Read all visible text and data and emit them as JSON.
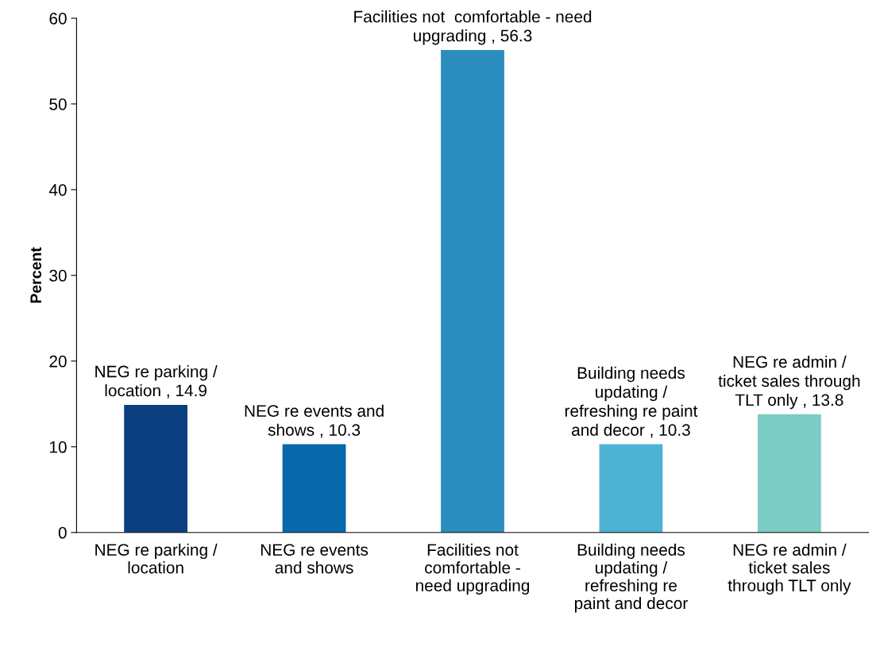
{
  "chart_data": {
    "type": "bar",
    "ylabel": "Percent",
    "categories": [
      "NEG re parking /\nlocation",
      "NEG re events\nand shows",
      "Facilities not\ncomfortable -\nneed upgrading",
      "Building needs\nupdating /\nrefreshing re\npaint and decor",
      "NEG re admin /\nticket sales\nthrough TLT only"
    ],
    "values": [
      14.9,
      10.3,
      56.3,
      10.3,
      13.8
    ],
    "colors": [
      "#0b3f80",
      "#0868ac",
      "#2b8cbe",
      "#4eb3d3",
      "#7bccc4"
    ],
    "value_labels": [
      "NEG re parking /\nlocation , 14.9",
      "NEG re events and\nshows , 10.3",
      "Facilities not  comfortable - need\nupgrading , 56.3",
      "Building needs\nupdating /\nrefreshing re paint\nand decor , 10.3",
      "NEG re admin /\nticket sales through\nTLT only , 13.8"
    ],
    "ylim": [
      0,
      60
    ],
    "yticks": [
      0,
      10,
      20,
      30,
      40,
      50,
      60
    ],
    "grid": false,
    "legend": false
  }
}
